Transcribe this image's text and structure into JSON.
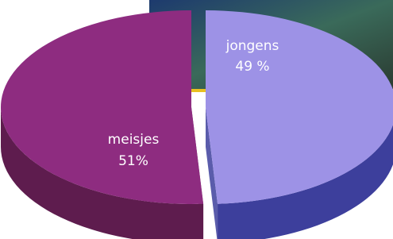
{
  "chart_data": {
    "type": "pie",
    "categories": [
      "jongens",
      "meisjes"
    ],
    "values": [
      49,
      51
    ],
    "value_labels": [
      "49 %",
      "51%"
    ],
    "colors": [
      "#9d92e6",
      "#8e2c80"
    ],
    "side_colors": [
      "#3d3f9c",
      "#5e1c4e"
    ]
  }
}
